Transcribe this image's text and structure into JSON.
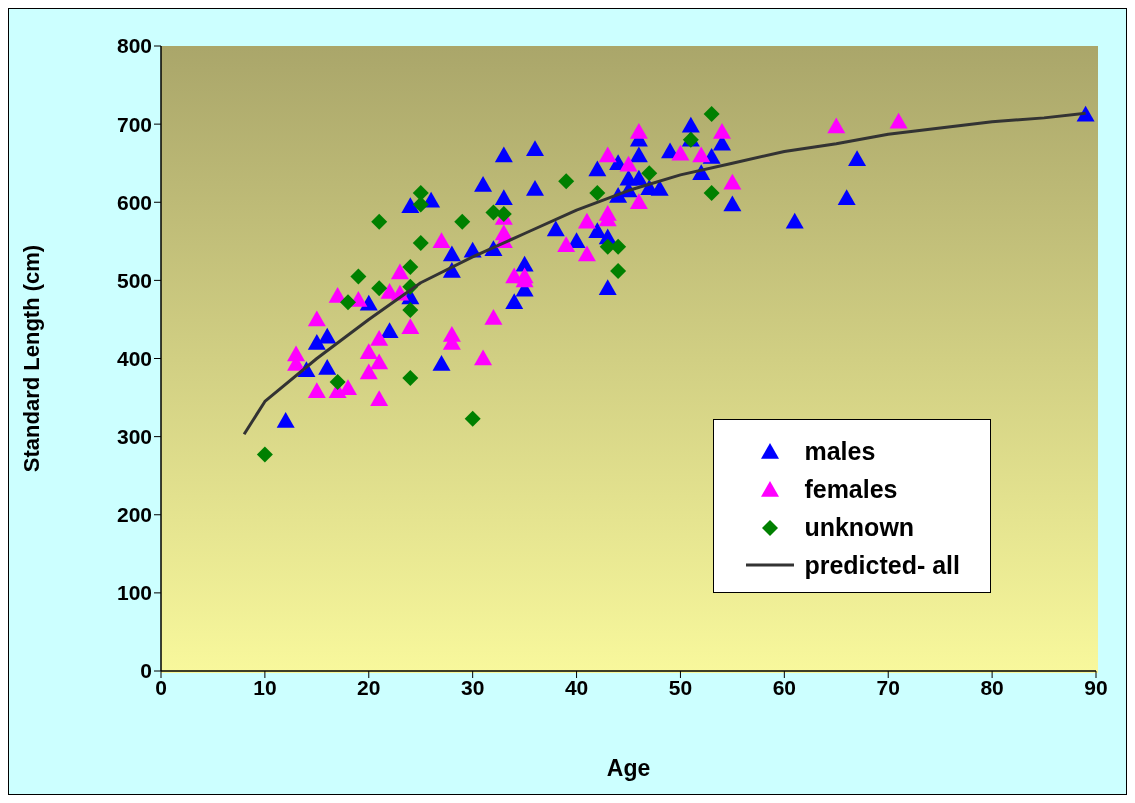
{
  "chart_data": {
    "type": "scatter",
    "xlabel": "Age",
    "ylabel": "Standard Length (cm)",
    "xlim": [
      0,
      90
    ],
    "xticks": [
      0,
      10,
      20,
      30,
      40,
      50,
      60,
      70,
      80,
      90
    ],
    "ylim": [
      0,
      800
    ],
    "yticks": [
      0,
      100,
      200,
      300,
      400,
      500,
      600,
      700,
      800
    ],
    "legend": "bottom right",
    "series": [
      {
        "name": "males",
        "type": "scatter",
        "marker": "triangle",
        "color": "#0000ff",
        "x": [
          12,
          14,
          15,
          16,
          16,
          20,
          22,
          24,
          24,
          26,
          27,
          28,
          28,
          30,
          31,
          32,
          33,
          33,
          34,
          35,
          35,
          36,
          36,
          38,
          40,
          42,
          42,
          43,
          43,
          44,
          44,
          45,
          45,
          46,
          46,
          46,
          47,
          48,
          49,
          51,
          51,
          52,
          53,
          54,
          55,
          61,
          66,
          67,
          89
        ],
        "values": [
          320,
          385,
          420,
          428,
          388,
          470,
          435,
          595,
          478,
          602,
          393,
          533,
          512,
          538,
          622,
          540,
          660,
          605,
          472,
          520,
          488,
          668,
          617,
          565,
          550,
          642,
          563,
          555,
          490,
          650,
          608,
          630,
          615,
          680,
          660,
          630,
          618,
          617,
          665,
          698,
          680,
          637,
          658,
          675,
          597,
          575,
          605,
          655,
          712
        ]
      },
      {
        "name": "females",
        "type": "scatter",
        "marker": "triangle",
        "color": "#ff00ff",
        "x": [
          13,
          13,
          15,
          15,
          17,
          17,
          18,
          19,
          20,
          20,
          21,
          21,
          21,
          22,
          23,
          23,
          24,
          27,
          28,
          28,
          31,
          32,
          33,
          33,
          33,
          34,
          35,
          35,
          39,
          41,
          41,
          43,
          43,
          43,
          45,
          46,
          46,
          50,
          52,
          54,
          55,
          65,
          71
        ],
        "values": [
          405,
          393,
          450,
          358,
          480,
          358,
          362,
          475,
          408,
          382,
          425,
          395,
          348,
          485,
          510,
          483,
          440,
          550,
          430,
          420,
          400,
          452,
          580,
          560,
          550,
          505,
          505,
          500,
          545,
          575,
          533,
          660,
          585,
          578,
          648,
          690,
          600,
          662,
          660,
          690,
          625,
          697,
          703
        ]
      },
      {
        "name": "unknown",
        "type": "scatter",
        "marker": "diamond",
        "color": "#008000",
        "x": [
          10,
          17,
          18,
          19,
          21,
          21,
          24,
          24,
          24,
          24,
          25,
          25,
          25,
          29,
          30,
          32,
          33,
          39,
          42,
          43,
          44,
          44,
          47,
          51,
          53,
          53
        ],
        "values": [
          277,
          370,
          472,
          505,
          575,
          490,
          517,
          492,
          462,
          375,
          612,
          597,
          548,
          575,
          323,
          587,
          585,
          627,
          612,
          543,
          543,
          512,
          637,
          680,
          713,
          612
        ]
      },
      {
        "name": "predicted- all",
        "type": "line",
        "marker": "none",
        "color": "#333333",
        "x": [
          8,
          10,
          15,
          20,
          25,
          30,
          35,
          40,
          45,
          50,
          55,
          60,
          65,
          70,
          75,
          80,
          85,
          89
        ],
        "values": [
          303,
          345,
          400,
          450,
          497,
          530,
          560,
          590,
          615,
          635,
          650,
          665,
          675,
          687,
          695,
          703,
          708,
          714
        ]
      }
    ]
  }
}
